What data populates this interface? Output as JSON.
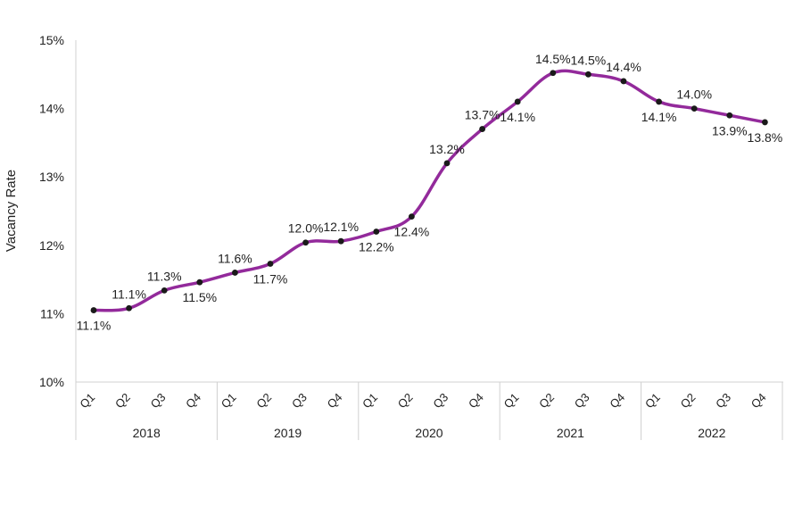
{
  "chart_data": {
    "type": "line",
    "ylabel": "Vacancy Rate",
    "xlabel": "",
    "ylim": [
      10,
      15
    ],
    "y_ticks": [
      "10%",
      "11%",
      "12%",
      "13%",
      "14%",
      "15%"
    ],
    "grid": false,
    "legend": "none",
    "groups": [
      {
        "label": "2018",
        "categories": [
          "Q1",
          "Q2",
          "Q3",
          "Q4"
        ]
      },
      {
        "label": "2019",
        "categories": [
          "Q1",
          "Q2",
          "Q3",
          "Q4"
        ]
      },
      {
        "label": "2020",
        "categories": [
          "Q1",
          "Q2",
          "Q3",
          "Q4"
        ]
      },
      {
        "label": "2021",
        "categories": [
          "Q1",
          "Q2",
          "Q3",
          "Q4"
        ]
      },
      {
        "label": "2022",
        "categories": [
          "Q1",
          "Q2",
          "Q3",
          "Q4"
        ]
      }
    ],
    "series": [
      {
        "color": "#932a9b",
        "values": [
          11.05,
          11.08,
          11.34,
          11.46,
          11.6,
          11.73,
          12.04,
          12.06,
          12.2,
          12.42,
          13.2,
          13.7,
          14.1,
          14.52,
          14.5,
          14.4,
          14.1,
          14.0,
          13.9,
          13.8
        ],
        "labels": [
          "11.1%",
          "11.1%",
          "11.3%",
          "11.5%",
          "11.6%",
          "11.7%",
          "12.0%",
          "12.1%",
          "12.2%",
          "12.4%",
          "13.2%",
          "13.7%",
          "14.1%",
          "14.5%",
          "14.5%",
          "14.4%",
          "14.1%",
          "14.0%",
          "13.9%",
          "13.8%"
        ]
      }
    ]
  }
}
